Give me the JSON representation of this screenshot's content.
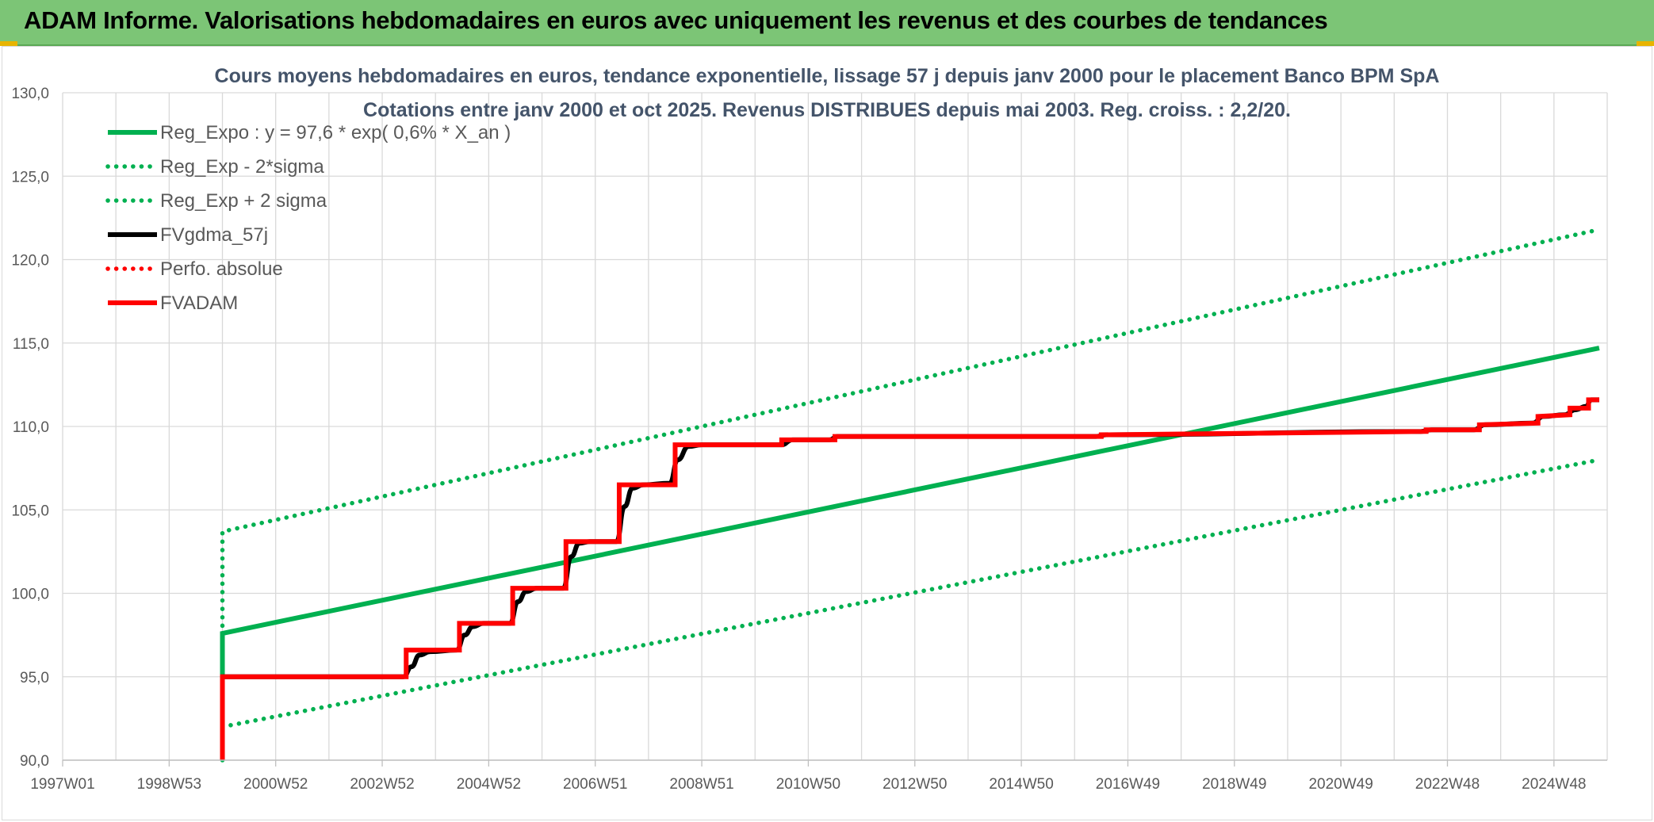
{
  "banner": {
    "title": "ADAM Informe. Valorisations hebdomadaires en euros avec uniquement les revenus et des courbes de tendances"
  },
  "colors": {
    "banner_bg": "#7cc576",
    "green": "#00b050",
    "black": "#000000",
    "red": "#ff0000",
    "grid": "#d9d9d9",
    "text": "#595959",
    "title": "#44546a"
  },
  "chart_data": {
    "type": "line",
    "title": "Cours moyens hebdomadaires en euros, tendance exponentielle, lissage 57 j depuis janv 2000 pour le placement Banco BPM SpA",
    "subtitle": "Cotations entre janv 2000 et oct 2025. Revenus DISTRIBUES depuis mai 2003. Reg. croiss. : 2,2/20.",
    "xlabel": "",
    "ylabel": "",
    "x_ticks": [
      "1997W01",
      "1998W53",
      "2000W52",
      "2002W52",
      "2004W52",
      "2006W51",
      "2008W51",
      "2010W50",
      "2012W50",
      "2014W50",
      "2016W49",
      "2018W49",
      "2020W49",
      "2022W48",
      "2024W48"
    ],
    "y_ticks": [
      "90,0",
      "95,0",
      "100,0",
      "105,0",
      "110,0",
      "115,0",
      "120,0",
      "125,0",
      "130,0"
    ],
    "ylim": [
      90,
      130
    ],
    "x_range_years": [
      1997.0,
      2026.0
    ],
    "grid": true,
    "legend_position": "top-left",
    "series": [
      {
        "name": "Reg_Expo : y = 97,6 * exp( 0,6% *  X_an )",
        "color": "#00b050",
        "style": "solid",
        "points": [
          [
            2000.0,
            90.0
          ],
          [
            2000.0,
            97.6
          ],
          [
            2025.85,
            114.7
          ]
        ]
      },
      {
        "name": "Reg_Exp - 2*sigma",
        "color": "#00b050",
        "style": "dotted",
        "points": [
          [
            2000.0,
            92.0
          ],
          [
            2025.85,
            108.0
          ]
        ]
      },
      {
        "name": "Reg_Exp + 2 sigma",
        "color": "#00b050",
        "style": "dotted",
        "points": [
          [
            2000.0,
            90.0
          ],
          [
            2000.0,
            103.7
          ],
          [
            2025.85,
            121.8
          ]
        ]
      },
      {
        "name": "FVgdma_57j",
        "color": "#000000",
        "style": "smooth-steps",
        "points": [
          [
            2000.0,
            95.0
          ],
          [
            2003.4,
            95.0
          ],
          [
            2003.55,
            95.6
          ],
          [
            2003.7,
            96.3
          ],
          [
            2003.9,
            96.5
          ],
          [
            2004.4,
            96.6
          ],
          [
            2004.55,
            97.5
          ],
          [
            2004.7,
            98.0
          ],
          [
            2004.9,
            98.2
          ],
          [
            2005.4,
            98.2
          ],
          [
            2005.55,
            99.5
          ],
          [
            2005.7,
            100.1
          ],
          [
            2005.9,
            100.3
          ],
          [
            2006.4,
            100.3
          ],
          [
            2006.55,
            102.2
          ],
          [
            2006.7,
            103.0
          ],
          [
            2006.9,
            103.1
          ],
          [
            2007.4,
            103.1
          ],
          [
            2007.55,
            105.2
          ],
          [
            2007.7,
            106.3
          ],
          [
            2007.9,
            106.5
          ],
          [
            2008.4,
            106.6
          ],
          [
            2008.55,
            108.0
          ],
          [
            2008.75,
            108.8
          ],
          [
            2009.0,
            108.9
          ],
          [
            2010.5,
            108.9
          ],
          [
            2010.7,
            109.2
          ],
          [
            2011.4,
            109.2
          ],
          [
            2011.55,
            109.4
          ],
          [
            2016.4,
            109.4
          ],
          [
            2016.6,
            109.5
          ],
          [
            2022.5,
            109.7
          ],
          [
            2022.7,
            109.8
          ],
          [
            2023.5,
            109.8
          ],
          [
            2023.7,
            110.1
          ],
          [
            2024.6,
            110.2
          ],
          [
            2024.8,
            110.6
          ],
          [
            2025.2,
            110.7
          ],
          [
            2025.4,
            111.0
          ],
          [
            2025.6,
            111.2
          ],
          [
            2025.7,
            111.6
          ],
          [
            2025.85,
            111.6
          ]
        ]
      },
      {
        "name": "Perfo. absolue",
        "color": "#ff0000",
        "style": "dotted",
        "points": []
      },
      {
        "name": "FVADAM",
        "color": "#ff0000",
        "style": "solid-steps",
        "points": [
          [
            2000.0,
            90.0
          ],
          [
            2000.0,
            95.0
          ],
          [
            2003.45,
            95.0
          ],
          [
            2003.45,
            96.6
          ],
          [
            2004.45,
            96.6
          ],
          [
            2004.45,
            98.2
          ],
          [
            2005.45,
            98.2
          ],
          [
            2005.45,
            100.3
          ],
          [
            2006.45,
            100.3
          ],
          [
            2006.45,
            103.1
          ],
          [
            2007.45,
            103.1
          ],
          [
            2007.45,
            106.5
          ],
          [
            2008.5,
            106.5
          ],
          [
            2008.5,
            108.9
          ],
          [
            2010.5,
            108.9
          ],
          [
            2010.5,
            109.2
          ],
          [
            2011.5,
            109.2
          ],
          [
            2011.5,
            109.4
          ],
          [
            2016.5,
            109.4
          ],
          [
            2016.5,
            109.5
          ],
          [
            2022.6,
            109.7
          ],
          [
            2022.6,
            109.8
          ],
          [
            2023.6,
            109.8
          ],
          [
            2023.6,
            110.1
          ],
          [
            2024.7,
            110.2
          ],
          [
            2024.7,
            110.6
          ],
          [
            2025.3,
            110.7
          ],
          [
            2025.3,
            111.1
          ],
          [
            2025.65,
            111.1
          ],
          [
            2025.65,
            111.6
          ],
          [
            2025.85,
            111.6
          ]
        ]
      }
    ]
  }
}
